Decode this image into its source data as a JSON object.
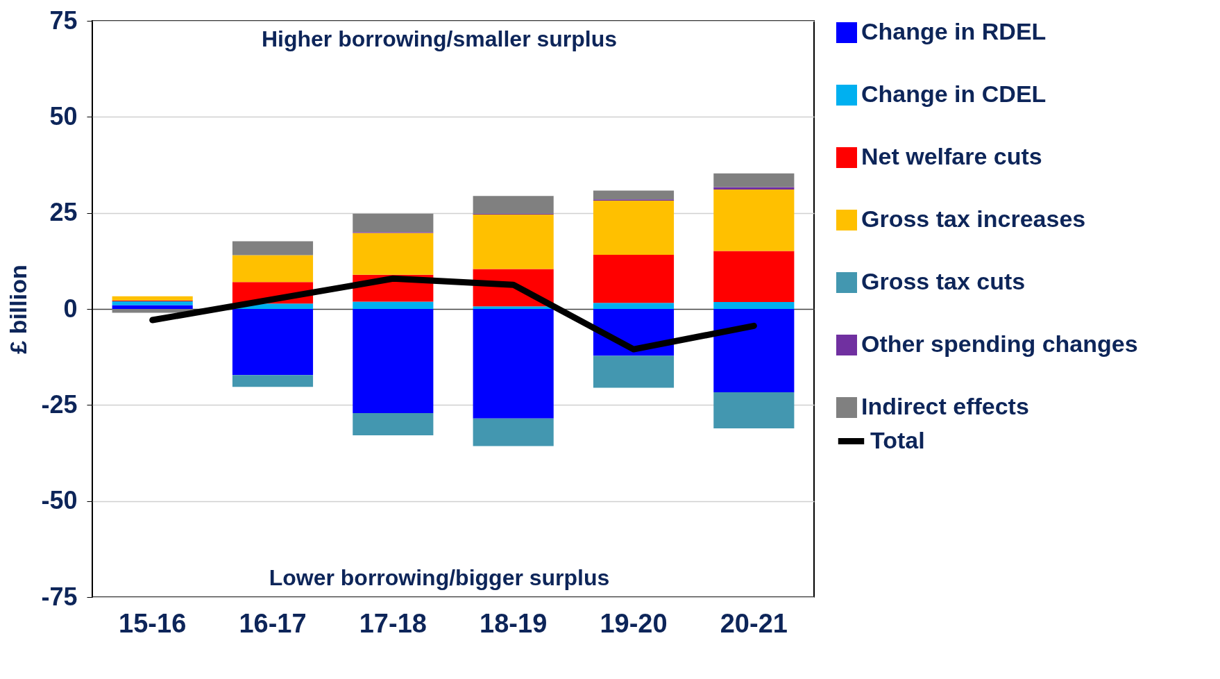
{
  "chart_data": {
    "type": "bar",
    "stacked": true,
    "ylabel": "£ billion",
    "categories": [
      "15-16",
      "16-17",
      "17-18",
      "18-19",
      "19-20",
      "20-21"
    ],
    "ylim": [
      -75,
      75
    ],
    "yticks": [
      -75,
      -50,
      -25,
      0,
      25,
      50,
      75
    ],
    "grid": "y",
    "legend": "right",
    "annotations": [
      "Higher borrowing/smaller surplus",
      "Lower borrowing/bigger surplus"
    ],
    "series": [
      {
        "name": "Change in RDEL",
        "color": "#0000ff",
        "values": [
          1.0,
          -17.2,
          -27.1,
          -28.5,
          -12.2,
          -21.7
        ]
      },
      {
        "name": "Change in CDEL",
        "color": "#00b0f0",
        "values": [
          1.0,
          1.4,
          1.9,
          0.7,
          1.6,
          1.8
        ]
      },
      {
        "name": "Net welfare cuts",
        "color": "#ff0000",
        "values": [
          0.2,
          5.6,
          7.0,
          9.7,
          12.5,
          13.3
        ]
      },
      {
        "name": "Gross tax increases",
        "color": "#ffc000",
        "values": [
          1.1,
          7.0,
          10.9,
          14.2,
          14.1,
          16.0
        ]
      },
      {
        "name": "Gross tax cuts",
        "color": "#4397b0",
        "values": [
          0,
          -3.1,
          -5.8,
          -7.2,
          -8.3,
          -9.4
        ]
      },
      {
        "name": "Other spending changes",
        "color": "#7030a0",
        "values": [
          0,
          0,
          0.2,
          0.2,
          0.3,
          0.6
        ]
      },
      {
        "name": "Indirect effects",
        "color": "#808080",
        "values": [
          -1.0,
          3.6,
          4.8,
          4.6,
          2.3,
          3.6
        ]
      },
      {
        "name": "Total",
        "type": "line",
        "color": "#000000",
        "values": [
          -2.9,
          2.5,
          7.9,
          6.3,
          -10.5,
          -4.4
        ]
      }
    ]
  }
}
